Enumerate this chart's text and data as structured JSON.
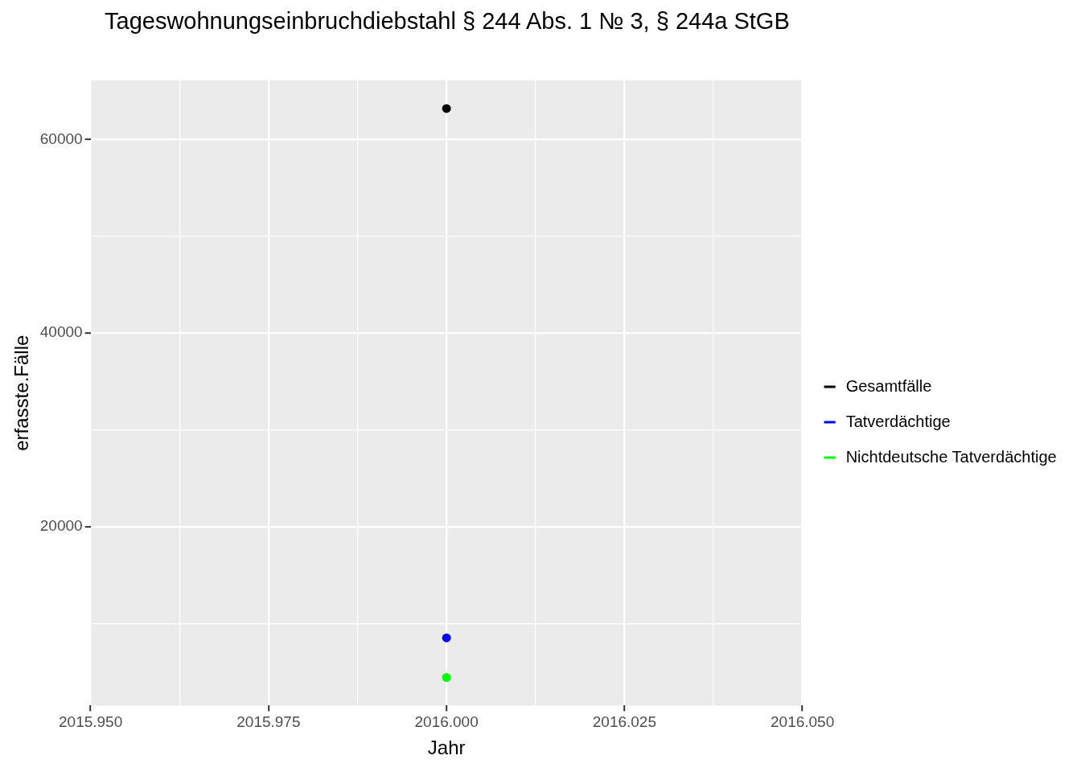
{
  "chart_data": {
    "type": "line",
    "title": "Tageswohnungseinbruchdiebstahl § 244 Abs. 1 № 3, § 244a StGB",
    "xlabel": "Jahr",
    "ylabel": "erfasste.Fälle",
    "x": [
      2016
    ],
    "series": [
      {
        "name": "Gesamtfälle",
        "color": "#000000",
        "values": [
          63200
        ]
      },
      {
        "name": "Tatverdächtige",
        "color": "#0000ff",
        "values": [
          8500
        ]
      },
      {
        "name": "Nichtdeutsche Tatverdächtige",
        "color": "#00ff00",
        "values": [
          4400
        ]
      }
    ],
    "xlim": [
      2015.95,
      2016.05
    ],
    "xticks": [
      {
        "value": 2015.95,
        "label": "2015.950"
      },
      {
        "value": 2015.9625,
        "label": null
      },
      {
        "value": 2015.975,
        "label": "2015.975"
      },
      {
        "value": 2015.9875,
        "label": null
      },
      {
        "value": 2016,
        "label": "2016.000"
      },
      {
        "value": 2016.0125,
        "label": null
      },
      {
        "value": 2016.025,
        "label": "2016.025"
      },
      {
        "value": 2016.0375,
        "label": null
      },
      {
        "value": 2016.05,
        "label": "2016.050"
      }
    ],
    "ylim": [
      1500,
      66100
    ],
    "yticks": [
      {
        "value": 10000,
        "label": null
      },
      {
        "value": 20000,
        "label": "20000"
      },
      {
        "value": 30000,
        "label": null
      },
      {
        "value": 40000,
        "label": "40000"
      },
      {
        "value": 50000,
        "label": null
      },
      {
        "value": 60000,
        "label": "60000"
      }
    ],
    "grid": true,
    "legend": "right",
    "marker": "circle",
    "line_style": "solid"
  }
}
